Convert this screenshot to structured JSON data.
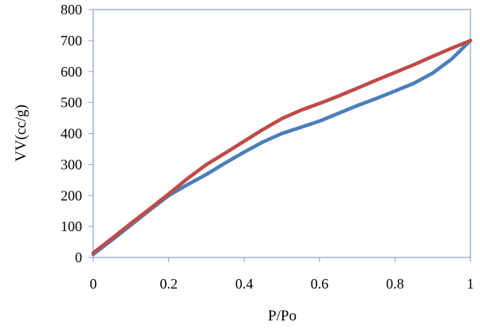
{
  "chart_data": {
    "type": "line",
    "title": "",
    "xlabel": "P/Po",
    "ylabel": "VV(cc/g)",
    "xlim": [
      0,
      1
    ],
    "ylim": [
      0,
      800
    ],
    "x_ticks": [
      "0",
      "0.2",
      "0.4",
      "0.6",
      "0.8",
      "1"
    ],
    "y_ticks": [
      "0",
      "100",
      "200",
      "300",
      "400",
      "500",
      "600",
      "700",
      "800"
    ],
    "grid": false,
    "legend": "none",
    "series": [
      {
        "color": "#4a7ebb",
        "x": [
          0,
          0.05,
          0.1,
          0.15,
          0.2,
          0.25,
          0.3,
          0.35,
          0.4,
          0.45,
          0.5,
          0.55,
          0.6,
          0.65,
          0.7,
          0.75,
          0.8,
          0.85,
          0.9,
          0.95,
          1.0
        ],
        "y": [
          10,
          57,
          105,
          153,
          200,
          235,
          268,
          305,
          340,
          373,
          400,
          420,
          440,
          465,
          490,
          513,
          537,
          562,
          595,
          640,
          700
        ]
      },
      {
        "color": "#be4b48",
        "x": [
          0,
          0.05,
          0.1,
          0.15,
          0.2,
          0.25,
          0.3,
          0.35,
          0.4,
          0.45,
          0.5,
          0.55,
          0.6,
          0.65,
          0.7,
          0.75,
          0.8,
          0.85,
          0.9,
          0.95,
          1.0
        ],
        "y": [
          15,
          62,
          110,
          157,
          205,
          255,
          300,
          337,
          375,
          413,
          448,
          475,
          497,
          521,
          546,
          572,
          597,
          622,
          649,
          675,
          700
        ]
      }
    ]
  }
}
